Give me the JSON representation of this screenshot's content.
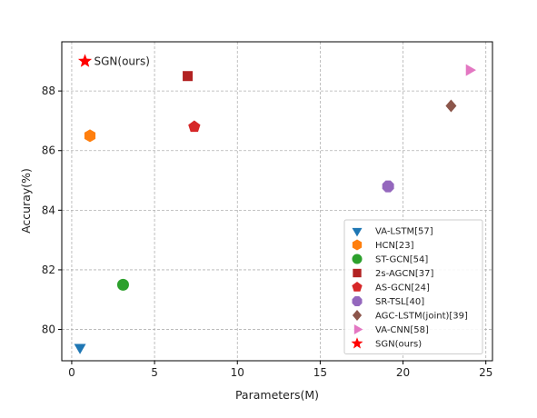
{
  "chart_data": {
    "type": "scatter",
    "xlabel": "Parameters(M)",
    "ylabel": "Accuray(%)",
    "xlim": [
      -0.6,
      25.4
    ],
    "ylim": [
      78.95,
      89.65
    ],
    "xticks": [
      0,
      5,
      10,
      15,
      20,
      25
    ],
    "yticks": [
      80,
      82,
      84,
      86,
      88
    ],
    "grid": true,
    "legend_position": "lower-right",
    "series": [
      {
        "name": "VA-LSTM[57]",
        "x": 0.5,
        "y": 79.4,
        "marker": "triangle-down",
        "color": "#1f77b4"
      },
      {
        "name": "HCN[23]",
        "x": 1.1,
        "y": 86.5,
        "marker": "hexagon",
        "color": "#ff7f0e"
      },
      {
        "name": "ST-GCN[54]",
        "x": 3.1,
        "y": 81.5,
        "marker": "circle",
        "color": "#2ca02c"
      },
      {
        "name": "2s-AGCN[37]",
        "x": 7.0,
        "y": 88.5,
        "marker": "square",
        "color": "#b22222"
      },
      {
        "name": "AS-GCN[24]",
        "x": 7.4,
        "y": 86.8,
        "marker": "pentagon",
        "color": "#d62728"
      },
      {
        "name": "SR-TSL[40]",
        "x": 19.1,
        "y": 84.8,
        "marker": "octagon",
        "color": "#9467bd"
      },
      {
        "name": "AGC-LSTM(joint)[39]",
        "x": 22.9,
        "y": 87.5,
        "marker": "diamond",
        "color": "#8c564b"
      },
      {
        "name": "VA-CNN[58]",
        "x": 24.0,
        "y": 88.7,
        "marker": "triangle-right",
        "color": "#e377c2"
      },
      {
        "name": "SGN(ours)",
        "x": 0.8,
        "y": 89.0,
        "marker": "star",
        "color": "#ff0000"
      }
    ],
    "annotations": [
      {
        "text": "SGN(ours)",
        "x": 0.8,
        "y": 89.0
      }
    ]
  }
}
